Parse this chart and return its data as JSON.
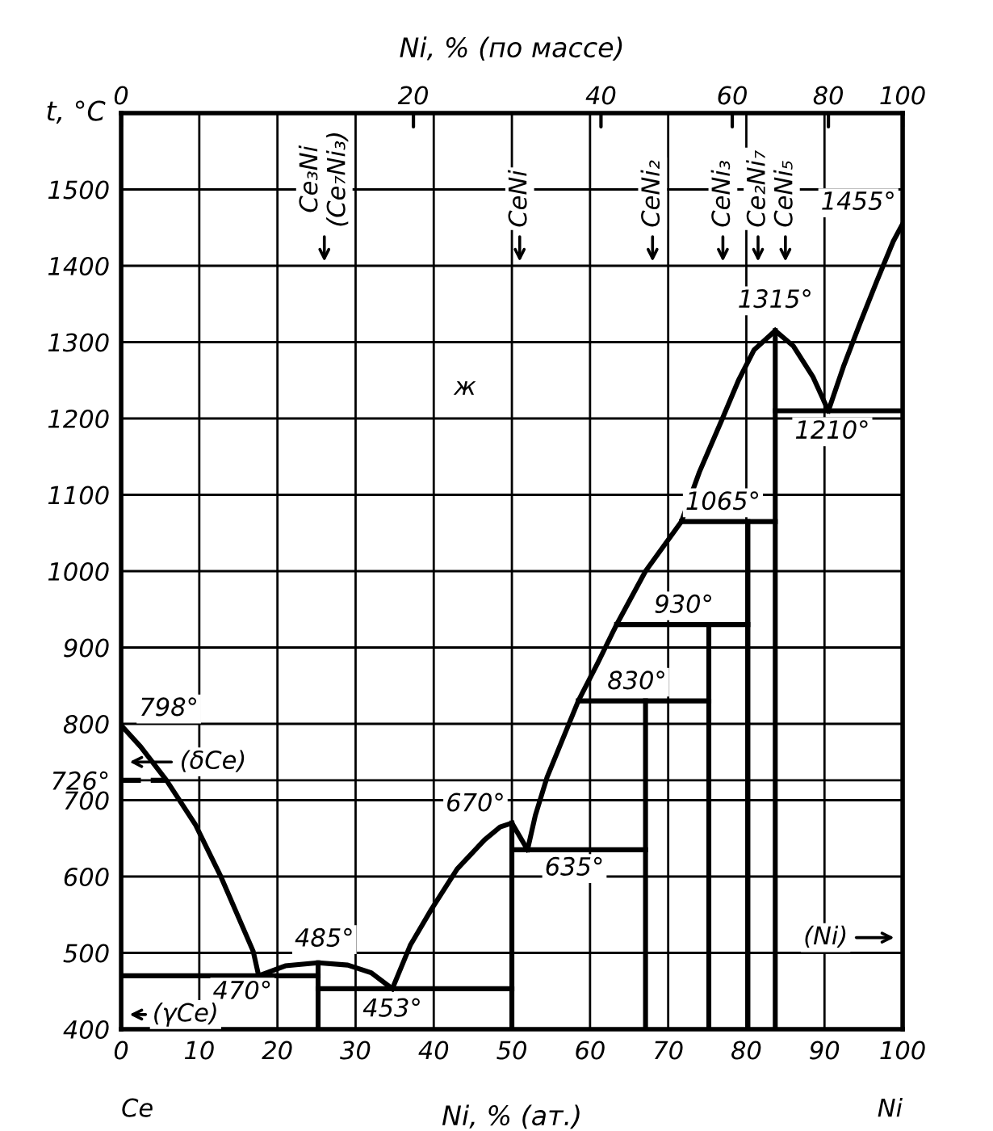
{
  "chart_data": {
    "type": "line",
    "xlabel": "Ni, % (ат.)",
    "x2label": "Ni, % (по массе)",
    "ylabel": "t, °C",
    "xlim": [
      0,
      100
    ],
    "xticks": [
      0,
      10,
      20,
      30,
      40,
      50,
      60,
      70,
      80,
      90,
      100
    ],
    "ylim": [
      400,
      1600
    ],
    "yticks": [
      400,
      500,
      600,
      700,
      {
        "value": 726,
        "label": "726°"
      },
      800,
      900,
      1000,
      1100,
      1200,
      1300,
      1400,
      1500
    ],
    "grid": true,
    "marker": "none",
    "line_style": "solid",
    "series": [
      {
        "color": "#000000",
        "x": [
          0,
          2.5,
          5.8,
          9.5,
          12.8,
          16.9,
          17.6
        ],
        "values": [
          798,
          770,
          726,
          668,
          599,
          502,
          470
        ]
      },
      {
        "color": "#000000",
        "x": [
          17.6,
          21,
          25.2,
          29,
          32,
          34.7
        ],
        "values": [
          470,
          483,
          487,
          484,
          474,
          453
        ]
      },
      {
        "color": "#000000",
        "x": [
          34.7,
          37,
          39.7,
          43,
          46.5,
          48.5,
          50
        ],
        "values": [
          453,
          510,
          557,
          610,
          648,
          665,
          670
        ]
      },
      {
        "color": "#000000",
        "x": [
          50,
          52
        ],
        "values": [
          670,
          635
        ]
      },
      {
        "color": "#000000",
        "x": [
          52,
          53,
          54.5,
          56.5,
          58.5,
          61,
          63.4,
          67.1,
          71.7,
          74,
          76.9,
          79,
          81,
          83.7
        ],
        "values": [
          635,
          680,
          730,
          780,
          830,
          880,
          930,
          1000,
          1065,
          1130,
          1199,
          1250,
          1290,
          1315
        ]
      },
      {
        "color": "#000000",
        "x": [
          83.7,
          86,
          88.5,
          90.5
        ],
        "values": [
          1315,
          1295,
          1255,
          1210
        ]
      },
      {
        "color": "#000000",
        "x": [
          90.5,
          92.5,
          94.6,
          96.7,
          98.8,
          100
        ],
        "values": [
          1210,
          1270,
          1326,
          1380,
          1432,
          1455
        ]
      },
      {
        "color": "#000000",
        "x": [
          0,
          25.2
        ],
        "values": [
          470,
          470
        ]
      },
      {
        "color": "#000000",
        "x": [
          25.2,
          50
        ],
        "values": [
          453,
          453
        ]
      },
      {
        "color": "#000000",
        "x": [
          50,
          67.1
        ],
        "values": [
          635,
          635
        ]
      },
      {
        "color": "#000000",
        "x": [
          58.5,
          75.2
        ],
        "values": [
          830,
          830
        ]
      },
      {
        "color": "#000000",
        "x": [
          63.4,
          80.2
        ],
        "values": [
          930,
          930
        ]
      },
      {
        "color": "#000000",
        "x": [
          71.7,
          83.7
        ],
        "values": [
          1065,
          1065
        ]
      },
      {
        "color": "#000000",
        "x": [
          83.7,
          100
        ],
        "values": [
          1210,
          1210
        ]
      },
      {
        "color": "#000000",
        "x": [
          25.2,
          25.2
        ],
        "values": [
          400,
          487
        ]
      },
      {
        "color": "#000000",
        "x": [
          50,
          50
        ],
        "values": [
          400,
          670
        ]
      },
      {
        "color": "#000000",
        "x": [
          67.1,
          67.1
        ],
        "values": [
          400,
          830
        ]
      },
      {
        "color": "#000000",
        "x": [
          75.2,
          75.2
        ],
        "values": [
          400,
          930
        ]
      },
      {
        "color": "#000000",
        "x": [
          80.2,
          80.2
        ],
        "values": [
          400,
          1065
        ]
      },
      {
        "color": "#000000",
        "x": [
          83.7,
          83.7
        ],
        "values": [
          400,
          1315
        ]
      },
      {
        "color": "#000000",
        "x": [
          0,
          5.8
        ],
        "values": [
          726,
          726
        ],
        "line_style": "dashed"
      }
    ],
    "annotations": [
      "0",
      "20",
      "40",
      "60",
      "80",
      "100",
      {
        "text": "798°",
        "x": 0,
        "y": 798
      },
      {
        "text": "470°",
        "x": 17.6,
        "y": 470
      },
      {
        "text": "485°",
        "x": 26,
        "y": 487
      },
      {
        "text": "453°",
        "x": 34.7,
        "y": 453
      },
      {
        "text": "670°",
        "x": 50,
        "y": 670
      },
      {
        "text": "635°",
        "x": 58,
        "y": 635
      },
      {
        "text": "830°",
        "x": 66,
        "y": 830
      },
      {
        "text": "930°",
        "x": 72,
        "y": 930
      },
      {
        "text": "1065°",
        "x": 77,
        "y": 1065
      },
      {
        "text": "1315°",
        "x": 83.7,
        "y": 1315
      },
      {
        "text": "1210°",
        "x": 91,
        "y": 1210
      },
      {
        "text": "1455°",
        "x": 100,
        "y": 1455
      },
      "ж",
      "(δCe)",
      "(γCe)",
      "(Ni)",
      "Ce₃Ni\n(Ce₇Ni₃)",
      "CeNi",
      "CeNi₂",
      "CeNi₃",
      "Ce₂Ni₇",
      "CeNi₅",
      "Ce",
      "Ni"
    ]
  }
}
